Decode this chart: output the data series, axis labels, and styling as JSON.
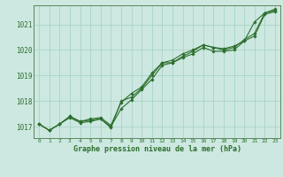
{
  "title": "Graphe pression niveau de la mer (hPa)",
  "background_color": "#cce8e0",
  "grid_color": "#aad4c8",
  "line_color": "#2d6e2d",
  "spine_color": "#4a7a4a",
  "x_labels": [
    "0",
    "1",
    "2",
    "3",
    "4",
    "5",
    "6",
    "7",
    "8",
    "9",
    "10",
    "11",
    "12",
    "13",
    "14",
    "15",
    "16",
    "17",
    "18",
    "19",
    "20",
    "21",
    "22",
    "23"
  ],
  "yticks": [
    1017,
    1018,
    1019,
    1020,
    1021
  ],
  "ylim": [
    1016.55,
    1021.75
  ],
  "xlim": [
    -0.5,
    23.5
  ],
  "series": [
    [
      1017.1,
      1016.85,
      1017.1,
      1017.4,
      1017.2,
      1017.25,
      1017.3,
      1017.0,
      1017.7,
      1018.05,
      1018.45,
      1018.85,
      1019.4,
      1019.5,
      1019.7,
      1019.85,
      1020.1,
      1019.95,
      1019.95,
      1020.0,
      1020.35,
      1020.55,
      1021.4,
      1021.5
    ],
    [
      1017.1,
      1016.85,
      1017.1,
      1017.35,
      1017.15,
      1017.2,
      1017.3,
      1016.95,
      1018.0,
      1018.15,
      1018.5,
      1019.0,
      1019.5,
      1019.5,
      1019.75,
      1019.95,
      1020.2,
      1020.1,
      1020.0,
      1020.1,
      1020.4,
      1020.65,
      1021.45,
      1021.55
    ],
    [
      1017.1,
      1016.85,
      1017.1,
      1017.4,
      1017.2,
      1017.3,
      1017.35,
      1017.05,
      1017.95,
      1018.3,
      1018.55,
      1019.1,
      1019.5,
      1019.6,
      1019.85,
      1020.0,
      1020.2,
      1020.1,
      1020.05,
      1020.15,
      1020.35,
      1021.1,
      1021.45,
      1021.6
    ]
  ]
}
